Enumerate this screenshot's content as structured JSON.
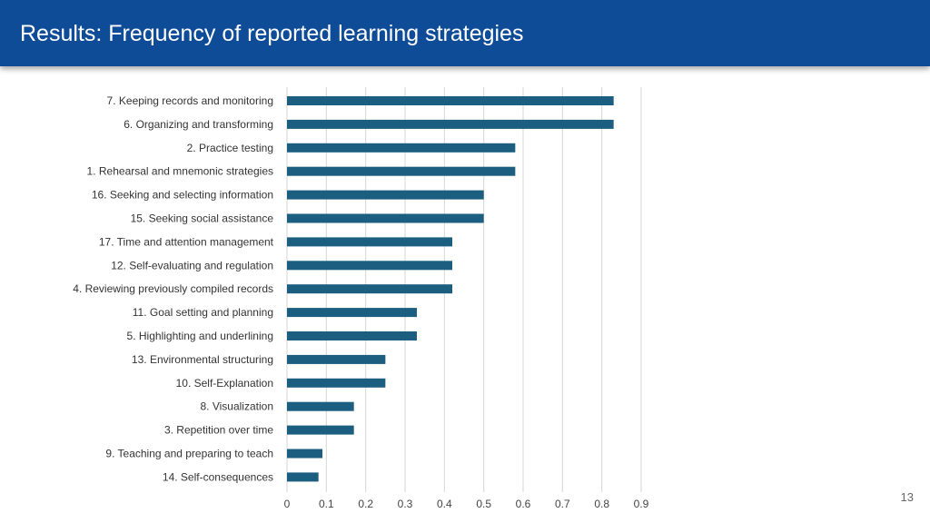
{
  "slide": {
    "title": "Results: Frequency of reported learning strategies",
    "page_number": "13"
  },
  "colors": {
    "header": "#0f4c97",
    "bar": "#1b5e80",
    "grid": "#d6d6d6"
  },
  "chart_data": {
    "type": "bar",
    "orientation": "horizontal",
    "categories": [
      "7. Keeping records and monitoring",
      "6. Organizing and transforming",
      "2. Practice testing",
      "1. Rehearsal and mnemonic strategies",
      "16. Seeking and selecting information",
      "15. Seeking social assistance",
      "17. Time and attention management",
      "12. Self-evaluating and regulation",
      "4. Reviewing previously compiled records",
      "11. Goal setting and planning",
      "5. Highlighting and underlining",
      "13. Environmental structuring",
      "10. Self-Explanation",
      "8. Visualization",
      "3. Repetition over time",
      "9. Teaching and preparing to teach",
      "14. Self-consequences"
    ],
    "values": [
      0.83,
      0.83,
      0.58,
      0.58,
      0.5,
      0.5,
      0.42,
      0.42,
      0.42,
      0.33,
      0.33,
      0.25,
      0.25,
      0.17,
      0.17,
      0.09,
      0.08
    ],
    "xlim": [
      0,
      0.9
    ],
    "xticks": [
      "0",
      "0.1",
      "0.2",
      "0.3",
      "0.4",
      "0.5",
      "0.6",
      "0.7",
      "0.8",
      "0.9"
    ],
    "grid": true,
    "legend": "none"
  }
}
